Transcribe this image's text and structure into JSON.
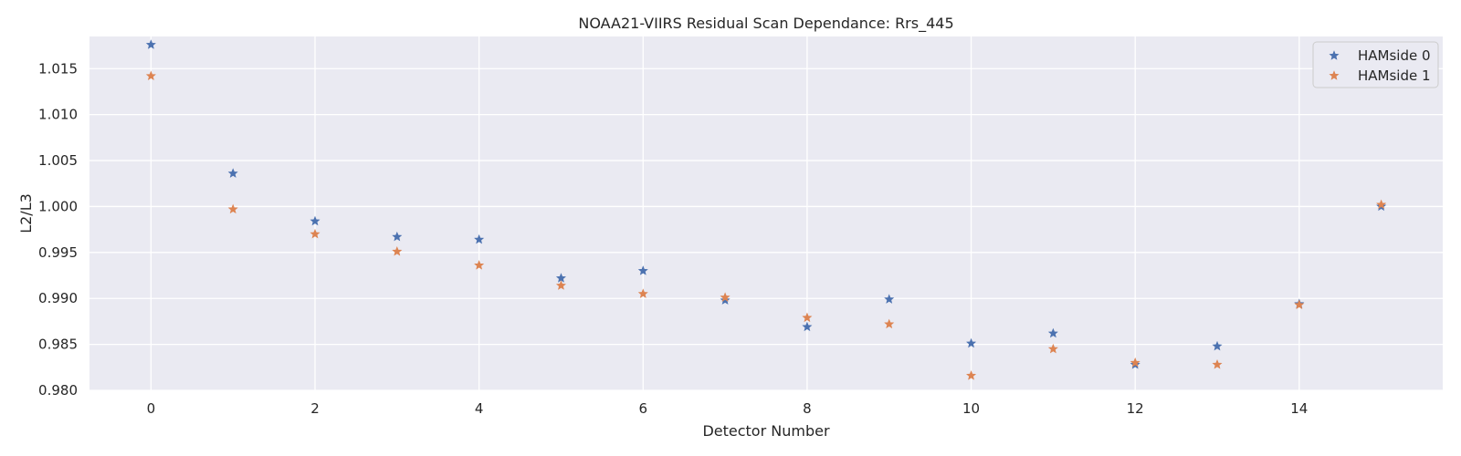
{
  "chart_data": {
    "type": "scatter",
    "title": "NOAA21-VIIRS Residual Scan Dependance: Rrs_445",
    "xlabel": "Detector Number",
    "ylabel": "L2/L3",
    "xlim": [
      -0.75,
      15.75
    ],
    "ylim": [
      0.98,
      1.0185
    ],
    "xticks": [
      0,
      2,
      4,
      6,
      8,
      10,
      12,
      14
    ],
    "xtick_labels": [
      "0",
      "2",
      "4",
      "6",
      "8",
      "10",
      "12",
      "14"
    ],
    "yticks": [
      0.98,
      0.985,
      0.99,
      0.995,
      1.0,
      1.005,
      1.01,
      1.015
    ],
    "ytick_labels": [
      "0.980",
      "0.985",
      "0.990",
      "0.995",
      "1.000",
      "1.005",
      "1.010",
      "1.015"
    ],
    "grid": true,
    "legend_position": "top-right",
    "marker": "star",
    "x": [
      0,
      1,
      2,
      3,
      4,
      5,
      6,
      7,
      8,
      9,
      10,
      11,
      12,
      13,
      14,
      15
    ],
    "series": [
      {
        "name": "HAMside 0",
        "color": "#4c72b0",
        "values": [
          1.0176,
          1.0036,
          0.9984,
          0.9967,
          0.9964,
          0.9922,
          0.993,
          0.9898,
          0.9869,
          0.9899,
          0.9851,
          0.9862,
          0.9828,
          0.9848,
          0.9894,
          1.0
        ]
      },
      {
        "name": "HAMside 1",
        "color": "#dd8452",
        "values": [
          1.0142,
          0.9997,
          0.997,
          0.9951,
          0.9936,
          0.9914,
          0.9905,
          0.9901,
          0.9879,
          0.9872,
          0.9816,
          0.9845,
          0.983,
          0.9828,
          0.9893,
          1.0002
        ]
      }
    ],
    "colors": {
      "plot_background": "#eaeaf2",
      "grid": "#ffffff",
      "text": "#262626"
    }
  }
}
